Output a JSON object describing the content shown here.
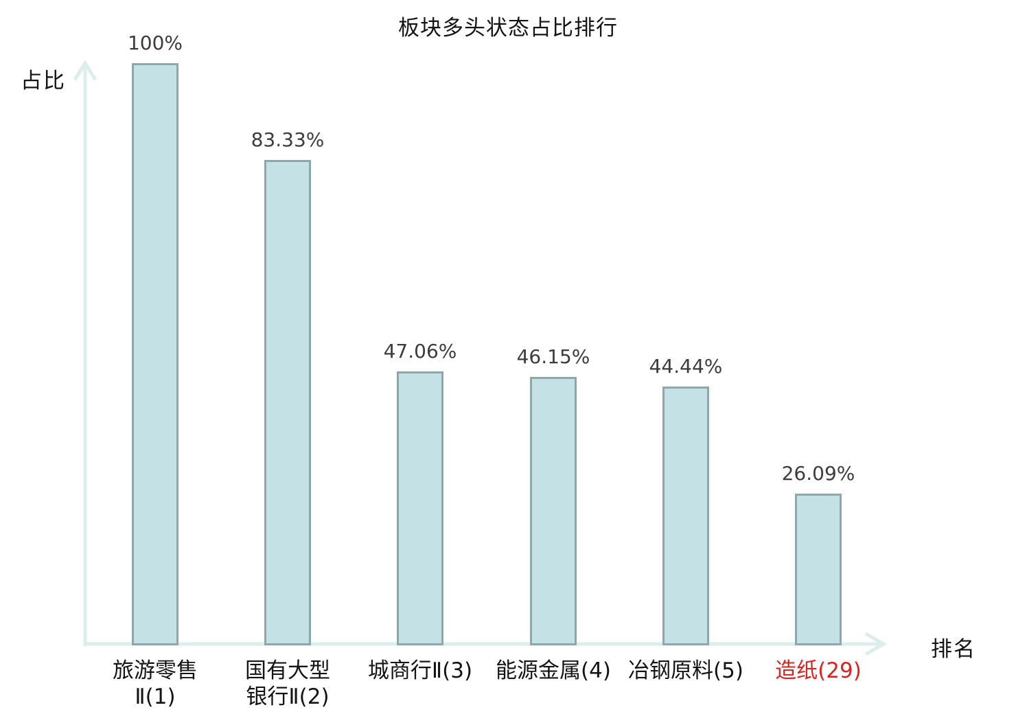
{
  "title": "板块多头状态占比排行",
  "colors": {
    "bar_fill": "#c4e2e5",
    "bar_border": "#8da7ab",
    "axis": "#dceeec",
    "value_text": "#3c3c3c",
    "label_text": "#141414",
    "highlight": "#de2121"
  },
  "chart_data": {
    "type": "bar",
    "title": "板块多头状态占比排行",
    "xlabel": "排名",
    "ylabel": "占比",
    "ylim": [
      0,
      100
    ],
    "grid": false,
    "legend": false,
    "categories": [
      "旅游零售Ⅱ(1)",
      "国有大型银行Ⅱ(2)",
      "城商行Ⅱ(3)",
      "能源金属(4)",
      "冶钢原料(5)",
      "造纸(29)"
    ],
    "category_lines": [
      [
        "旅游零售",
        "Ⅱ(1)"
      ],
      [
        "国有大型",
        "银行Ⅱ(2)"
      ],
      [
        "城商行Ⅱ(3)"
      ],
      [
        "能源金属(4)"
      ],
      [
        "冶钢原料(5)"
      ],
      [
        "造纸(29)"
      ]
    ],
    "values": [
      100,
      83.33,
      47.06,
      46.15,
      44.44,
      26.09
    ],
    "value_labels": [
      "100%",
      "83.33%",
      "47.06%",
      "46.15%",
      "44.44%",
      "26.09%"
    ],
    "highlight_index": 5
  }
}
